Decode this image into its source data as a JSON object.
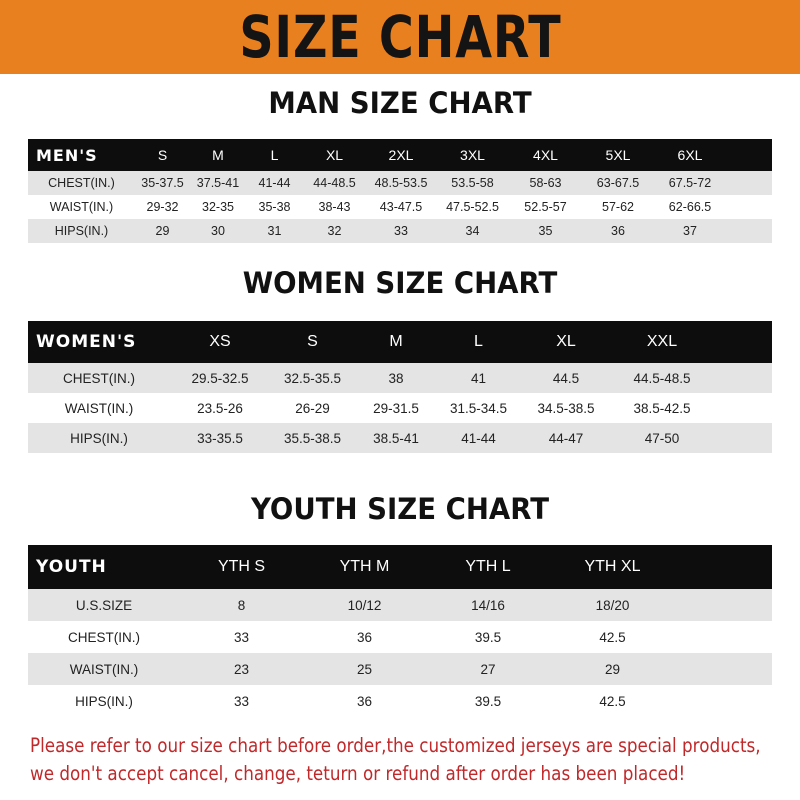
{
  "banner": {
    "title": "SIZE CHART",
    "color": "#e8801f"
  },
  "men": {
    "title": "MAN SIZE CHART",
    "header": [
      "MEN'S",
      "S",
      "M",
      "L",
      "XL",
      "2XL",
      "3XL",
      "4XL",
      "5XL",
      "6XL"
    ],
    "rows": [
      [
        "CHEST(IN.)",
        "35-37.5",
        "37.5-41",
        "41-44",
        "44-48.5",
        "48.5-53.5",
        "53.5-58",
        "58-63",
        "63-67.5",
        "67.5-72"
      ],
      [
        "WAIST(IN.)",
        "29-32",
        "32-35",
        "35-38",
        "38-43",
        "43-47.5",
        "47.5-52.5",
        "52.5-57",
        "57-62",
        "62-66.5"
      ],
      [
        "HIPS(IN.)",
        "29",
        "30",
        "31",
        "32",
        "33",
        "34",
        "35",
        "36",
        "37"
      ]
    ]
  },
  "women": {
    "title": "WOMEN SIZE CHART",
    "header": [
      "WOMEN'S",
      "XS",
      "S",
      "M",
      "L",
      "XL",
      "XXL"
    ],
    "rows": [
      [
        "CHEST(IN.)",
        "29.5-32.5",
        "32.5-35.5",
        "38",
        "41",
        "44.5",
        "44.5-48.5"
      ],
      [
        "WAIST(IN.)",
        "23.5-26",
        "26-29",
        "29-31.5",
        "31.5-34.5",
        "34.5-38.5",
        "38.5-42.5"
      ],
      [
        "HIPS(IN.)",
        "33-35.5",
        "35.5-38.5",
        "38.5-41",
        "41-44",
        "44-47",
        "47-50"
      ]
    ]
  },
  "youth": {
    "title": "YOUTH SIZE CHART",
    "header": [
      "YOUTH",
      "YTH S",
      "YTH M",
      "YTH L",
      "YTH XL"
    ],
    "rows": [
      [
        "U.S.SIZE",
        "8",
        "10/12",
        "14/16",
        "18/20"
      ],
      [
        "CHEST(IN.)",
        "33",
        "36",
        "39.5",
        "42.5"
      ],
      [
        "WAIST(IN.)",
        "23",
        "25",
        "27",
        "29"
      ],
      [
        "HIPS(IN.)",
        "33",
        "36",
        "39.5",
        "42.5"
      ]
    ]
  },
  "note": {
    "line1": "Please refer to our size chart before order,the customized jerseys are special products,",
    "line2": "we don't accept cancel, change, teturn or refund after order has been placed!",
    "color": "#c0282a"
  }
}
